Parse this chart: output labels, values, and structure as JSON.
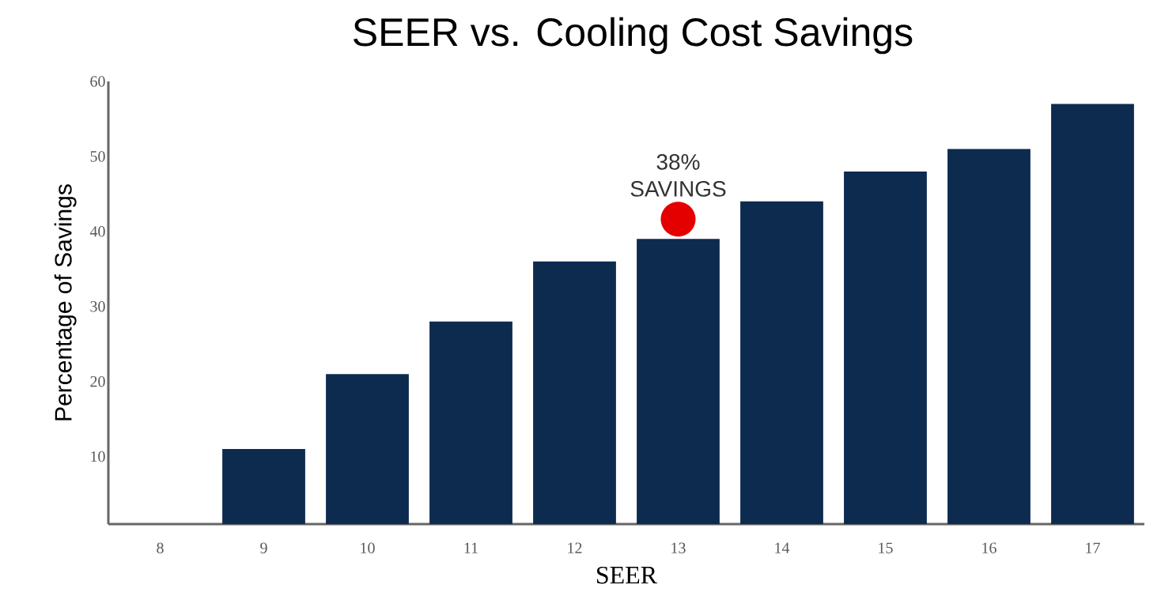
{
  "chart_data": {
    "type": "bar",
    "title": "SEER vs. Cooling Cost Savings",
    "xlabel": "SEER",
    "ylabel": "Percentage of Savings",
    "categories": [
      "8",
      "9",
      "10",
      "11",
      "12",
      "13",
      "14",
      "15",
      "16",
      "17"
    ],
    "values": [
      null,
      11,
      21,
      28,
      36,
      39,
      44,
      48,
      51,
      57
    ],
    "color": "#0d2a4f",
    "ylim": [
      1,
      60
    ],
    "yticks": [
      10,
      20,
      30,
      40,
      50,
      60
    ],
    "annotations": [
      {
        "text": "38% SAVINGS",
        "x": "13",
        "y": 39
      }
    ],
    "grid": false
  }
}
